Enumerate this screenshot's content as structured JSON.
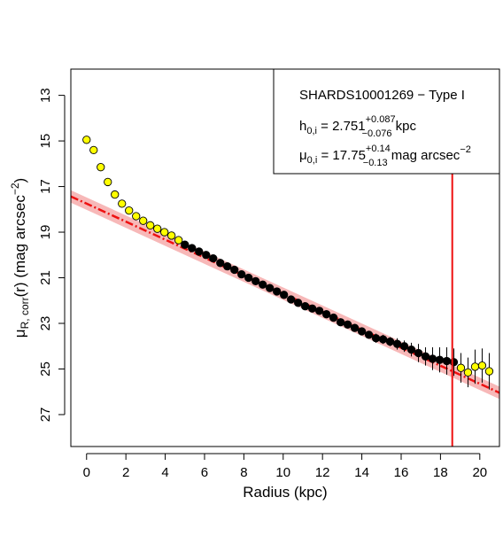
{
  "chart_data": {
    "type": "scatter",
    "xlabel": "Radius (kpc)",
    "ylabel_main": "μ",
    "ylabel_sub": "R, corr",
    "ylabel_rest": "(r) (mag arcsec",
    "ylabel_sup": "−2",
    "ylabel_close": ")",
    "xlim": [
      -0.8,
      21.0
    ],
    "ylim": [
      28.4,
      11.85
    ],
    "y_reversed": true,
    "xticks": [
      0,
      2,
      4,
      6,
      8,
      10,
      12,
      14,
      16,
      18,
      20
    ],
    "yticks": [
      13,
      15,
      17,
      19,
      21,
      23,
      25,
      27
    ],
    "grid": false,
    "legend": {
      "placement": "top-right",
      "line1": "SHARDS10001269  − Type I",
      "h_main": "h",
      "h_sub": "0,i",
      "h_eq": " = 2.751",
      "h_sup": "+0.087",
      "h_sub2": "−0.076",
      "h_unit": " kpc",
      "mu_main": "μ",
      "mu_sub": "0,i",
      "mu_eq": " = 17.75",
      "mu_sup": "+0.14",
      "mu_sub2": "−0.13",
      "mu_unit": " mag arcsec",
      "mu_unit_sup": "−2"
    },
    "fit": {
      "label": "Type I exponential fit",
      "color": "#ee1111",
      "band_color": "#f4a0a0",
      "x": [
        -0.8,
        21.0
      ],
      "y": [
        17.433,
        26.043
      ]
    },
    "vline": {
      "x": 18.6,
      "color": "#ee1111"
    },
    "series": [
      {
        "marker_fill": "#ffff00",
        "x": [
          0.0,
          0.36,
          0.72,
          1.08,
          1.44,
          1.8,
          2.16,
          2.52,
          2.88,
          3.24,
          3.6,
          3.96,
          4.32,
          4.68
        ],
        "y": [
          14.95,
          15.4,
          16.15,
          16.8,
          17.35,
          17.75,
          18.05,
          18.3,
          18.5,
          18.7,
          18.85,
          19.0,
          19.15,
          19.35
        ],
        "err": [
          0,
          0,
          0,
          0,
          0,
          0,
          0,
          0,
          0,
          0,
          0,
          0,
          0,
          0
        ]
      },
      {
        "marker_fill": "#000000",
        "x": [
          5.0,
          5.36,
          5.72,
          6.08,
          6.44,
          6.8,
          7.16,
          7.52,
          7.88,
          8.24,
          8.6,
          8.96,
          9.32,
          9.68,
          10.04,
          10.4,
          10.76,
          11.12,
          11.48,
          11.84,
          12.2,
          12.56,
          12.92,
          13.28,
          13.64,
          14.0,
          14.36,
          14.72,
          15.08,
          15.44,
          15.8,
          16.16,
          16.52,
          16.88,
          17.24,
          17.6,
          17.96,
          18.32,
          18.68
        ],
        "y": [
          19.55,
          19.7,
          19.85,
          20.0,
          20.15,
          20.35,
          20.5,
          20.65,
          20.85,
          21.0,
          21.15,
          21.3,
          21.45,
          21.6,
          21.75,
          21.95,
          22.1,
          22.25,
          22.35,
          22.45,
          22.6,
          22.75,
          22.95,
          23.05,
          23.2,
          23.35,
          23.5,
          23.65,
          23.7,
          23.8,
          23.9,
          24.0,
          24.15,
          24.3,
          24.45,
          24.55,
          24.6,
          24.65,
          24.7
        ],
        "err": [
          0,
          0,
          0,
          0,
          0,
          0,
          0,
          0,
          0,
          0,
          0,
          0,
          0,
          0,
          0,
          0,
          0,
          0,
          0,
          0,
          0,
          0,
          0,
          0,
          0,
          0,
          0,
          0.2,
          0.2,
          0.2,
          0.25,
          0.25,
          0.3,
          0.4,
          0.4,
          0.5,
          0.55,
          0.6,
          0.6
        ]
      },
      {
        "marker_fill": "#ffff00",
        "x": [
          19.04,
          19.4,
          19.76,
          20.12,
          20.48
        ],
        "y": [
          24.95,
          25.15,
          24.9,
          24.85,
          25.1
        ],
        "err": [
          0.65,
          0.65,
          0.75,
          0.75,
          0.8
        ]
      }
    ]
  }
}
